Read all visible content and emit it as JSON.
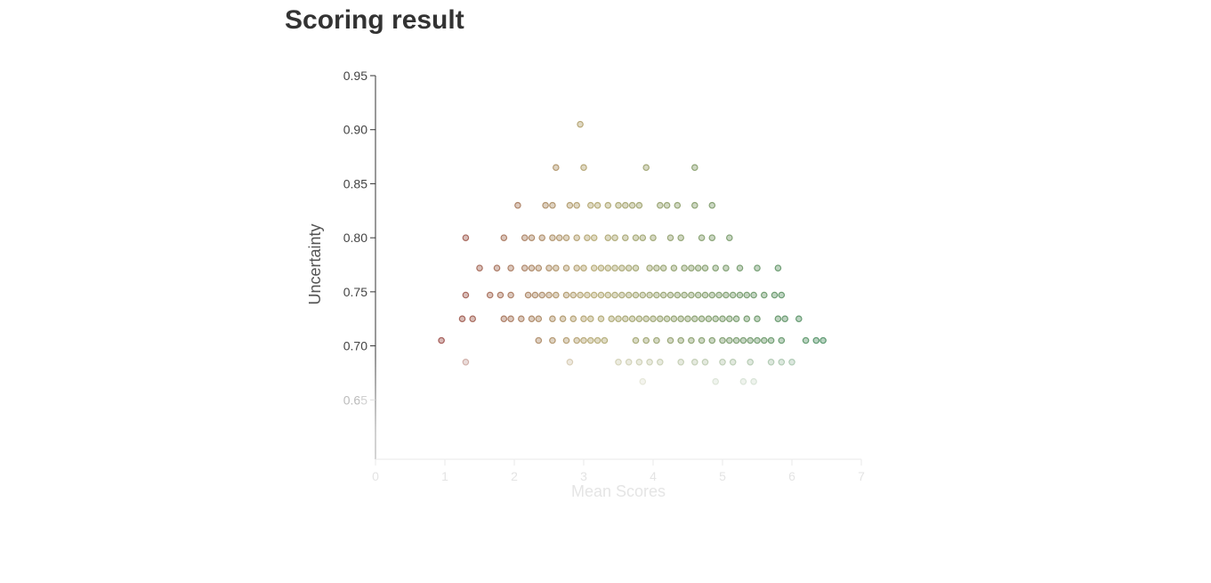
{
  "page": {
    "title": "Scoring result"
  },
  "chart_data": {
    "type": "scatter",
    "title": "",
    "xlabel": "Mean Scores",
    "ylabel": "Uncertainty",
    "xlim": [
      0,
      7
    ],
    "ylim": [
      0.6,
      0.95
    ],
    "xticks": [
      0,
      1,
      2,
      3,
      4,
      5,
      6,
      7
    ],
    "yticks": [
      0.65,
      0.7,
      0.75,
      0.8,
      0.85,
      0.9,
      0.95
    ],
    "ytick_labels": [
      "0.65",
      "0.70",
      "0.75",
      "0.80",
      "0.85",
      "0.90",
      "0.95"
    ],
    "grid": false,
    "legend": "none",
    "colors": {
      "low": "#8b2e2a",
      "mid": "#a89a5a",
      "high": "#2e7d4a",
      "axis": "#333333"
    },
    "points": [
      [
        2.95,
        0.905
      ],
      [
        2.6,
        0.865
      ],
      [
        3.0,
        0.865
      ],
      [
        3.9,
        0.865
      ],
      [
        4.6,
        0.865
      ],
      [
        2.05,
        0.83
      ],
      [
        2.45,
        0.83
      ],
      [
        2.55,
        0.83
      ],
      [
        2.8,
        0.83
      ],
      [
        2.9,
        0.83
      ],
      [
        3.1,
        0.83
      ],
      [
        3.2,
        0.83
      ],
      [
        3.35,
        0.83
      ],
      [
        3.5,
        0.83
      ],
      [
        3.6,
        0.83
      ],
      [
        3.7,
        0.83
      ],
      [
        3.8,
        0.83
      ],
      [
        4.1,
        0.83
      ],
      [
        4.2,
        0.83
      ],
      [
        4.35,
        0.83
      ],
      [
        4.6,
        0.83
      ],
      [
        4.85,
        0.83
      ],
      [
        1.3,
        0.8
      ],
      [
        1.85,
        0.8
      ],
      [
        2.15,
        0.8
      ],
      [
        2.25,
        0.8
      ],
      [
        2.4,
        0.8
      ],
      [
        2.55,
        0.8
      ],
      [
        2.65,
        0.8
      ],
      [
        2.75,
        0.8
      ],
      [
        2.9,
        0.8
      ],
      [
        3.05,
        0.8
      ],
      [
        3.15,
        0.8
      ],
      [
        3.35,
        0.8
      ],
      [
        3.45,
        0.8
      ],
      [
        3.6,
        0.8
      ],
      [
        3.75,
        0.8
      ],
      [
        3.85,
        0.8
      ],
      [
        4.0,
        0.8
      ],
      [
        4.25,
        0.8
      ],
      [
        4.4,
        0.8
      ],
      [
        4.7,
        0.8
      ],
      [
        4.85,
        0.8
      ],
      [
        5.1,
        0.8
      ],
      [
        1.5,
        0.772
      ],
      [
        1.75,
        0.772
      ],
      [
        1.95,
        0.772
      ],
      [
        2.15,
        0.772
      ],
      [
        2.25,
        0.772
      ],
      [
        2.35,
        0.772
      ],
      [
        2.5,
        0.772
      ],
      [
        2.6,
        0.772
      ],
      [
        2.75,
        0.772
      ],
      [
        2.9,
        0.772
      ],
      [
        3.0,
        0.772
      ],
      [
        3.15,
        0.772
      ],
      [
        3.25,
        0.772
      ],
      [
        3.35,
        0.772
      ],
      [
        3.45,
        0.772
      ],
      [
        3.55,
        0.772
      ],
      [
        3.65,
        0.772
      ],
      [
        3.75,
        0.772
      ],
      [
        3.95,
        0.772
      ],
      [
        4.05,
        0.772
      ],
      [
        4.15,
        0.772
      ],
      [
        4.3,
        0.772
      ],
      [
        4.45,
        0.772
      ],
      [
        4.55,
        0.772
      ],
      [
        4.65,
        0.772
      ],
      [
        4.75,
        0.772
      ],
      [
        4.9,
        0.772
      ],
      [
        5.05,
        0.772
      ],
      [
        5.25,
        0.772
      ],
      [
        5.5,
        0.772
      ],
      [
        5.8,
        0.772
      ],
      [
        1.3,
        0.747
      ],
      [
        1.65,
        0.747
      ],
      [
        1.8,
        0.747
      ],
      [
        1.95,
        0.747
      ],
      [
        2.2,
        0.747
      ],
      [
        2.3,
        0.747
      ],
      [
        2.4,
        0.747
      ],
      [
        2.5,
        0.747
      ],
      [
        2.6,
        0.747
      ],
      [
        2.75,
        0.747
      ],
      [
        2.85,
        0.747
      ],
      [
        2.95,
        0.747
      ],
      [
        3.05,
        0.747
      ],
      [
        3.15,
        0.747
      ],
      [
        3.25,
        0.747
      ],
      [
        3.35,
        0.747
      ],
      [
        3.45,
        0.747
      ],
      [
        3.55,
        0.747
      ],
      [
        3.65,
        0.747
      ],
      [
        3.75,
        0.747
      ],
      [
        3.85,
        0.747
      ],
      [
        3.95,
        0.747
      ],
      [
        4.05,
        0.747
      ],
      [
        4.15,
        0.747
      ],
      [
        4.25,
        0.747
      ],
      [
        4.35,
        0.747
      ],
      [
        4.45,
        0.747
      ],
      [
        4.55,
        0.747
      ],
      [
        4.65,
        0.747
      ],
      [
        4.75,
        0.747
      ],
      [
        4.85,
        0.747
      ],
      [
        4.95,
        0.747
      ],
      [
        5.05,
        0.747
      ],
      [
        5.15,
        0.747
      ],
      [
        5.25,
        0.747
      ],
      [
        5.35,
        0.747
      ],
      [
        5.45,
        0.747
      ],
      [
        5.6,
        0.747
      ],
      [
        5.75,
        0.747
      ],
      [
        5.85,
        0.747
      ],
      [
        1.25,
        0.725
      ],
      [
        1.4,
        0.725
      ],
      [
        1.85,
        0.725
      ],
      [
        1.95,
        0.725
      ],
      [
        2.1,
        0.725
      ],
      [
        2.25,
        0.725
      ],
      [
        2.35,
        0.725
      ],
      [
        2.55,
        0.725
      ],
      [
        2.7,
        0.725
      ],
      [
        2.85,
        0.725
      ],
      [
        3.0,
        0.725
      ],
      [
        3.1,
        0.725
      ],
      [
        3.25,
        0.725
      ],
      [
        3.4,
        0.725
      ],
      [
        3.5,
        0.725
      ],
      [
        3.6,
        0.725
      ],
      [
        3.7,
        0.725
      ],
      [
        3.8,
        0.725
      ],
      [
        3.9,
        0.725
      ],
      [
        4.0,
        0.725
      ],
      [
        4.1,
        0.725
      ],
      [
        4.2,
        0.725
      ],
      [
        4.3,
        0.725
      ],
      [
        4.4,
        0.725
      ],
      [
        4.5,
        0.725
      ],
      [
        4.6,
        0.725
      ],
      [
        4.7,
        0.725
      ],
      [
        4.8,
        0.725
      ],
      [
        4.9,
        0.725
      ],
      [
        5.0,
        0.725
      ],
      [
        5.1,
        0.725
      ],
      [
        5.2,
        0.725
      ],
      [
        5.35,
        0.725
      ],
      [
        5.5,
        0.725
      ],
      [
        5.8,
        0.725
      ],
      [
        5.9,
        0.725
      ],
      [
        6.1,
        0.725
      ],
      [
        0.95,
        0.705
      ],
      [
        2.35,
        0.705
      ],
      [
        2.55,
        0.705
      ],
      [
        2.75,
        0.705
      ],
      [
        2.9,
        0.705
      ],
      [
        3.0,
        0.705
      ],
      [
        3.1,
        0.705
      ],
      [
        3.2,
        0.705
      ],
      [
        3.3,
        0.705
      ],
      [
        3.75,
        0.705
      ],
      [
        3.9,
        0.705
      ],
      [
        4.05,
        0.705
      ],
      [
        4.25,
        0.705
      ],
      [
        4.4,
        0.705
      ],
      [
        4.55,
        0.705
      ],
      [
        4.7,
        0.705
      ],
      [
        4.85,
        0.705
      ],
      [
        5.0,
        0.705
      ],
      [
        5.1,
        0.705
      ],
      [
        5.2,
        0.705
      ],
      [
        5.3,
        0.705
      ],
      [
        5.4,
        0.705
      ],
      [
        5.5,
        0.705
      ],
      [
        5.6,
        0.705
      ],
      [
        5.7,
        0.705
      ],
      [
        5.85,
        0.705
      ],
      [
        6.2,
        0.705
      ],
      [
        6.35,
        0.705
      ],
      [
        6.45,
        0.705
      ],
      [
        1.3,
        0.685
      ],
      [
        2.8,
        0.685
      ],
      [
        3.5,
        0.685
      ],
      [
        3.65,
        0.685
      ],
      [
        3.8,
        0.685
      ],
      [
        3.95,
        0.685
      ],
      [
        4.1,
        0.685
      ],
      [
        4.4,
        0.685
      ],
      [
        4.6,
        0.685
      ],
      [
        4.75,
        0.685
      ],
      [
        5.0,
        0.685
      ],
      [
        5.15,
        0.685
      ],
      [
        5.4,
        0.685
      ],
      [
        5.7,
        0.685
      ],
      [
        5.85,
        0.685
      ],
      [
        6.0,
        0.685
      ],
      [
        3.85,
        0.667
      ],
      [
        4.9,
        0.667
      ],
      [
        5.3,
        0.667
      ],
      [
        5.45,
        0.667
      ]
    ]
  }
}
